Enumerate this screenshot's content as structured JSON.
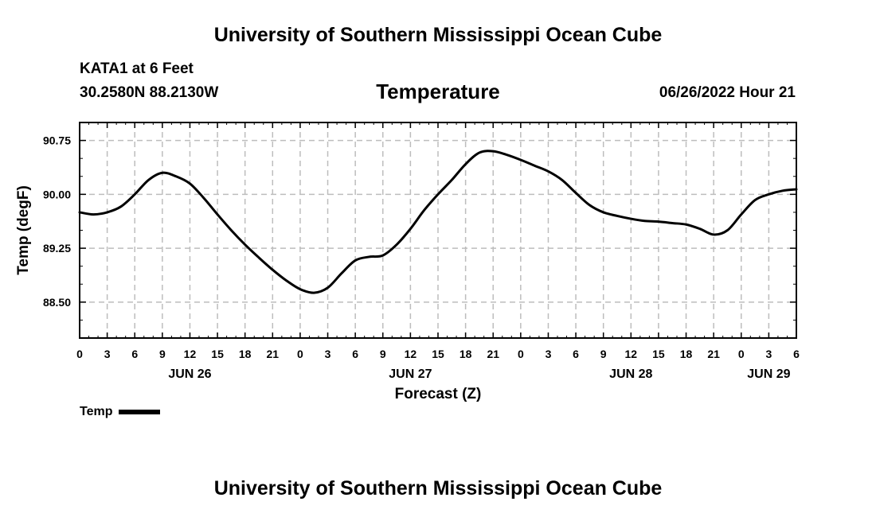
{
  "header": {
    "title": "University of Southern Mississippi Ocean Cube",
    "station": "KATA1 at 6 Feet",
    "coords": "30.2580N  88.2130W",
    "variable": "Temperature",
    "datetime": "06/26/2022 Hour 21"
  },
  "footer": {
    "title": "University of Southern Mississippi Ocean Cube"
  },
  "legend": {
    "label": "Temp"
  },
  "chart_data": {
    "type": "line",
    "title": "Temperature",
    "xlabel": "Forecast (Z)",
    "ylabel": "Temp (degF)",
    "xlim": [
      0,
      78
    ],
    "ylim": [
      88.0,
      91.0
    ],
    "yticks": [
      88.5,
      89.25,
      90.0,
      90.75
    ],
    "ytick_labels": [
      "88.50",
      "89.25",
      "90.00",
      "90.75"
    ],
    "x_tick_hours": [
      0,
      3,
      6,
      9,
      12,
      15,
      18,
      21,
      24,
      27,
      30,
      33,
      36,
      39,
      42,
      45,
      48,
      51,
      54,
      57,
      60,
      63,
      66,
      69,
      72,
      75,
      78
    ],
    "x_tick_labels": [
      "0",
      "3",
      "6",
      "9",
      "12",
      "15",
      "18",
      "21",
      "0",
      "3",
      "6",
      "9",
      "12",
      "15",
      "18",
      "21",
      "0",
      "3",
      "6",
      "9",
      "12",
      "15",
      "18",
      "21",
      "0",
      "3",
      "6"
    ],
    "day_labels": [
      {
        "hour": 12,
        "label": "JUN 26"
      },
      {
        "hour": 36,
        "label": "JUN 27"
      },
      {
        "hour": 60,
        "label": "JUN 28"
      },
      {
        "hour": 75,
        "label": "JUN 29"
      }
    ],
    "grid": true,
    "series": [
      {
        "name": "Temp",
        "color": "#000000",
        "x": [
          0,
          1.5,
          3,
          4.5,
          6,
          7.5,
          9,
          10.5,
          12,
          13.5,
          15,
          16.5,
          18,
          19.5,
          21,
          22.5,
          24,
          25.5,
          27,
          28.5,
          30,
          31.5,
          33,
          34.5,
          36,
          37.5,
          39,
          40.5,
          42,
          43.5,
          45,
          46.5,
          48,
          49.5,
          51,
          52.5,
          54,
          55.5,
          57,
          58.5,
          60,
          61.5,
          63,
          64.5,
          66,
          67.5,
          69,
          70.5,
          72,
          73.5,
          75,
          76.5,
          78
        ],
        "values": [
          89.75,
          89.72,
          89.75,
          89.83,
          90.0,
          90.2,
          90.3,
          90.25,
          90.15,
          89.95,
          89.72,
          89.5,
          89.3,
          89.12,
          88.95,
          88.8,
          88.68,
          88.63,
          88.7,
          88.9,
          89.08,
          89.13,
          89.15,
          89.3,
          89.52,
          89.78,
          90.0,
          90.2,
          90.42,
          90.58,
          90.6,
          90.55,
          90.48,
          90.4,
          90.32,
          90.2,
          90.02,
          89.85,
          89.75,
          89.7,
          89.66,
          89.63,
          89.62,
          89.6,
          89.58,
          89.52,
          89.44,
          89.5,
          89.72,
          89.92,
          90.0,
          90.05,
          90.07
        ]
      }
    ]
  }
}
